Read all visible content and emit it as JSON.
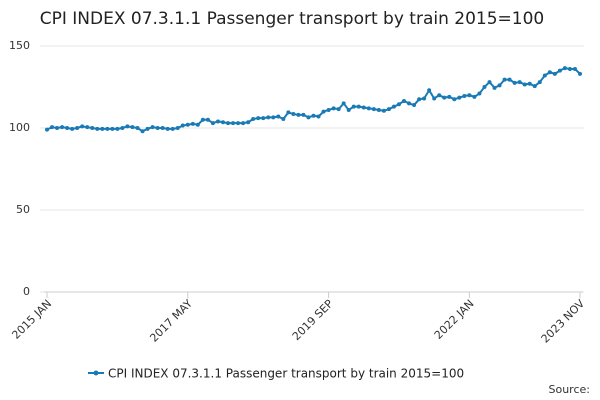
{
  "chart_data": {
    "type": "line",
    "title": "CPI INDEX 07.3.1.1 Passenger transport by train 2015=100",
    "source": "Source:",
    "categories": [
      "2015 JAN",
      null,
      null,
      null,
      null,
      null,
      null,
      null,
      null,
      null,
      null,
      null,
      null,
      null,
      null,
      null,
      null,
      null,
      null,
      null,
      null,
      null,
      null,
      null,
      null,
      null,
      null,
      null,
      "2017 MAY",
      null,
      null,
      null,
      null,
      null,
      null,
      null,
      null,
      null,
      null,
      null,
      null,
      null,
      null,
      null,
      null,
      null,
      null,
      null,
      null,
      null,
      null,
      null,
      null,
      null,
      null,
      null,
      "2019 SEP",
      null,
      null,
      null,
      null,
      null,
      null,
      null,
      null,
      null,
      null,
      null,
      null,
      null,
      null,
      null,
      null,
      null,
      null,
      null,
      null,
      null,
      null,
      null,
      null,
      null,
      null,
      null,
      "2022 JAN",
      null,
      null,
      null,
      null,
      null,
      null,
      null,
      null,
      null,
      null,
      null,
      null,
      null,
      null,
      null,
      null,
      null,
      null,
      null,
      null,
      null,
      "2023 NOV"
    ],
    "series": [
      {
        "name": "CPI INDEX 07.3.1.1 Passenger transport by train 2015=100",
        "color": "#1a7ab5",
        "values": [
          99,
          100.5,
          100,
          100.5,
          100,
          99.5,
          100,
          101,
          100.5,
          100,
          99.5,
          99.5,
          99.5,
          99.5,
          99.5,
          100,
          101,
          100.5,
          100,
          98,
          99.5,
          100.5,
          100,
          100,
          99.5,
          99.5,
          100,
          101.5,
          102,
          102.5,
          102,
          105,
          105,
          103,
          104,
          103.5,
          103,
          103,
          103,
          103,
          103.5,
          105.5,
          106,
          106,
          106.5,
          106.5,
          107,
          105.5,
          109.5,
          108.5,
          108,
          108,
          106.5,
          107.5,
          107,
          110,
          111,
          112,
          111.5,
          115,
          111,
          113,
          113,
          112.5,
          112,
          111.5,
          111,
          110.5,
          111.5,
          113,
          114.5,
          116.5,
          115,
          114,
          117.5,
          118,
          123,
          118,
          120,
          118.5,
          119,
          117.5,
          118.5,
          119.5,
          120,
          119,
          121,
          125,
          128,
          124.5,
          126,
          129.5,
          129.5,
          127.5,
          128,
          126.5,
          127,
          125.5,
          128,
          132,
          134,
          133,
          135,
          136.5,
          136,
          136,
          133
        ]
      }
    ],
    "ylim": [
      0,
      150
    ],
    "yticks": [
      0,
      50,
      100,
      150
    ],
    "grid": true
  }
}
